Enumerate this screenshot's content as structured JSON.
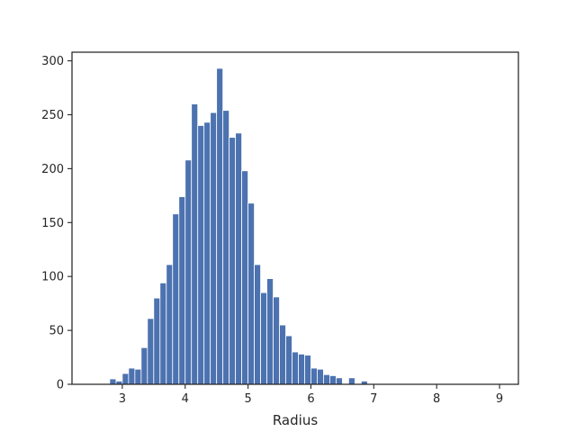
{
  "chart_data": {
    "type": "bar",
    "subtype": "histogram",
    "xlabel": "Radius",
    "ylabel": "",
    "xlim": [
      2.2,
      9.3
    ],
    "ylim": [
      0,
      308
    ],
    "xticks": [
      3,
      4,
      5,
      6,
      7,
      8,
      9
    ],
    "yticks": [
      0,
      50,
      100,
      150,
      200,
      250,
      300
    ],
    "bin_start": 2.8,
    "bin_width": 0.1,
    "values": [
      5,
      3,
      10,
      15,
      14,
      34,
      61,
      80,
      94,
      111,
      158,
      174,
      208,
      260,
      240,
      243,
      252,
      293,
      254,
      229,
      233,
      198,
      168,
      111,
      85,
      98,
      81,
      55,
      45,
      30,
      28,
      27,
      15,
      14,
      9,
      8,
      6,
      0,
      6,
      0,
      3
    ],
    "bar_color": "#4c72b0",
    "grid": false
  }
}
